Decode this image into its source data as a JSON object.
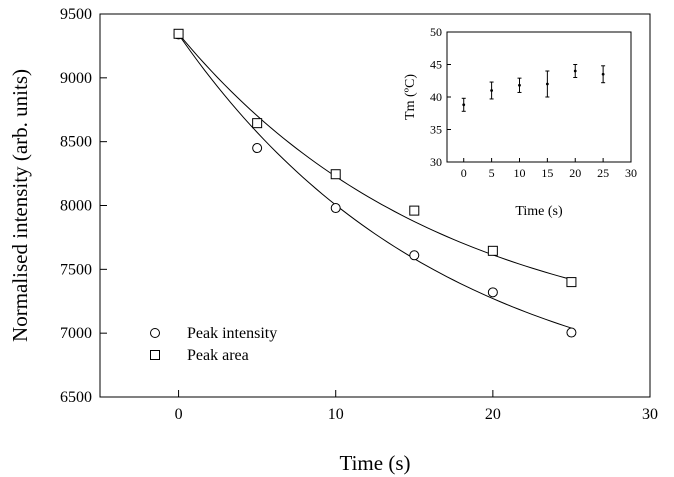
{
  "chart_data": [
    {
      "type": "scatter",
      "title": "",
      "xlabel": "Time (s)",
      "ylabel": "Normalised intensity (arb. units)",
      "xlim": [
        -5,
        30
      ],
      "ylim": [
        6500,
        9500
      ],
      "x_ticks": [
        "0",
        "10",
        "20",
        "30"
      ],
      "y_ticks": [
        "6500",
        "7000",
        "7500",
        "8000",
        "8500",
        "9000",
        "9500"
      ],
      "grid": false,
      "legend_position": "bottom-left",
      "series": [
        {
          "name": "Peak intensity",
          "marker": "circle",
          "x": [
            0,
            5,
            10,
            15,
            20,
            25
          ],
          "y": [
            9340,
            8450,
            7980,
            7610,
            7320,
            7005
          ],
          "fit": {
            "model": "exponential decay",
            "y_start": 9340,
            "y_end": 7040
          }
        },
        {
          "name": "Peak area",
          "marker": "square",
          "x": [
            0,
            5,
            10,
            15,
            20,
            25
          ],
          "y": [
            9345,
            8645,
            8245,
            7960,
            7645,
            7400
          ],
          "fit": {
            "model": "exponential decay",
            "y_start": 9345,
            "y_end": 7420
          }
        }
      ]
    },
    {
      "type": "scatter",
      "title": "",
      "xlabel": "Time (s)",
      "ylabel": "Tm (ºC)",
      "xlim": [
        -3,
        30
      ],
      "ylim": [
        30,
        50
      ],
      "x_ticks": [
        "0",
        "5",
        "10",
        "15",
        "20",
        "25",
        "30"
      ],
      "y_ticks": [
        "30",
        "35",
        "40",
        "45",
        "50"
      ],
      "grid": false,
      "series": [
        {
          "x": [
            0,
            5,
            10,
            15,
            20,
            25
          ],
          "y": [
            38.8,
            41.0,
            41.8,
            42.0,
            44.0,
            43.5
          ],
          "error": [
            1.0,
            1.3,
            1.1,
            2.0,
            1.0,
            1.3
          ]
        }
      ]
    }
  ]
}
